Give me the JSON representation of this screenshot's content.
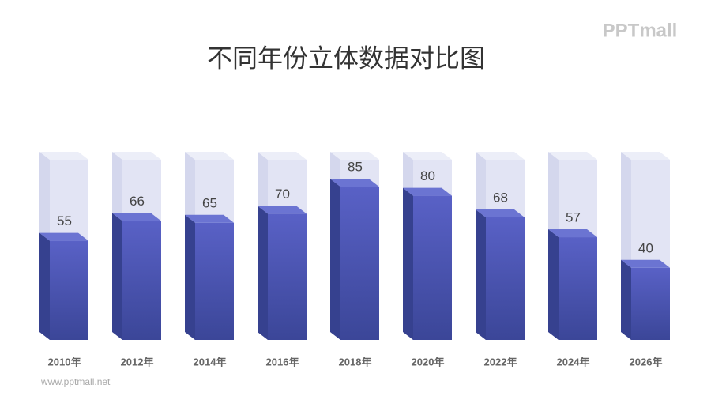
{
  "chart_data": {
    "type": "bar3d",
    "title": "不同年份立体数据对比图",
    "categories": [
      "2010年",
      "2012年",
      "2014年",
      "2016年",
      "2018年",
      "2020年",
      "2022年",
      "2024年",
      "2026年"
    ],
    "values": [
      55,
      66,
      65,
      70,
      85,
      80,
      68,
      57,
      40
    ],
    "ylim": [
      0,
      100
    ],
    "color": "#4b55b8"
  },
  "logo": "PPTmall",
  "footer": "www.pptmall.net"
}
